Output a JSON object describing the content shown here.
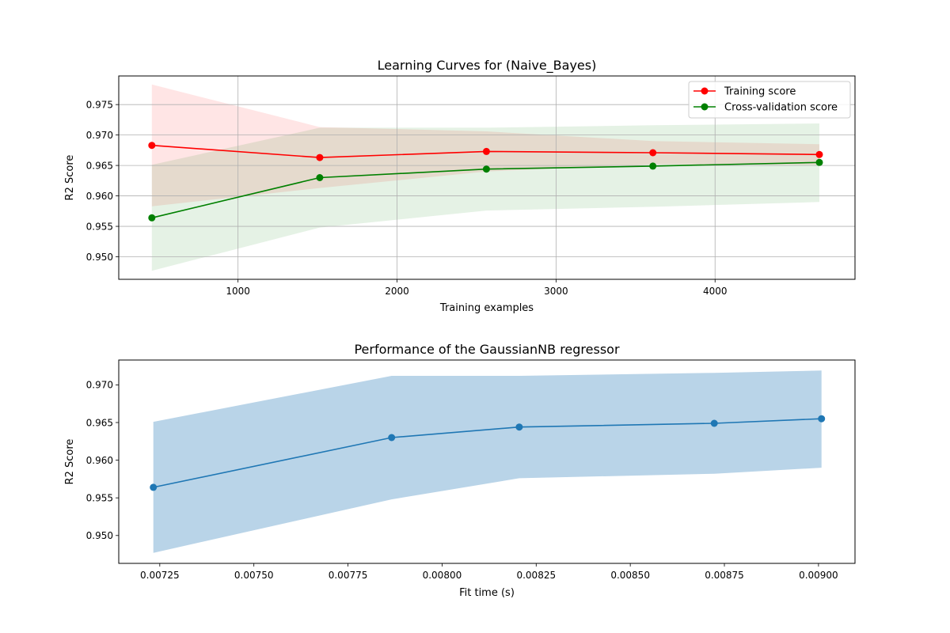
{
  "chart_data": [
    {
      "type": "line",
      "title": "Learning Curves for (Naive_Bayes)",
      "xlabel": "Training examples",
      "ylabel": "R2 Score",
      "xlim": [
        250,
        4880
      ],
      "ylim": [
        0.9463,
        0.9797
      ],
      "xticks": [
        1000,
        2000,
        3000,
        4000
      ],
      "xtick_labels": [
        "1000",
        "2000",
        "3000",
        "4000"
      ],
      "yticks": [
        0.95,
        0.955,
        0.96,
        0.965,
        0.97,
        0.975
      ],
      "ytick_labels": [
        "0.950",
        "0.955",
        "0.960",
        "0.965",
        "0.970",
        "0.975"
      ],
      "grid": true,
      "legend_position": "top-right",
      "x": [
        458,
        1514,
        2562,
        3609,
        4656
      ],
      "series": [
        {
          "name": "Training score",
          "color": "#ff0000",
          "band_color": "#ff0000",
          "values": [
            0.9683,
            0.9663,
            0.9673,
            0.9671,
            0.9668
          ],
          "lower": [
            0.9583,
            0.9613,
            0.964,
            0.9652,
            0.9651
          ],
          "upper": [
            0.9783,
            0.9713,
            0.9706,
            0.969,
            0.9685
          ]
        },
        {
          "name": "Cross-validation score",
          "color": "#008000",
          "band_color": "#008000",
          "values": [
            0.9564,
            0.963,
            0.9644,
            0.9649,
            0.9655
          ],
          "lower": [
            0.9477,
            0.9548,
            0.9576,
            0.9582,
            0.959
          ],
          "upper": [
            0.9651,
            0.9712,
            0.9712,
            0.9716,
            0.9719
          ]
        }
      ]
    },
    {
      "type": "line",
      "title": "Performance of the GaussianNB regressor",
      "xlabel": "Fit time (s)",
      "ylabel": "R2 Score",
      "xlim": [
        0.007141,
        0.009097
      ],
      "ylim": [
        0.9463,
        0.9733
      ],
      "xticks": [
        0.00725,
        0.0075,
        0.00775,
        0.008,
        0.00825,
        0.0085,
        0.00875,
        0.009
      ],
      "xtick_labels": [
        "0.00725",
        "0.00750",
        "0.00775",
        "0.00800",
        "0.00825",
        "0.00850",
        "0.00875",
        "0.00900"
      ],
      "yticks": [
        0.95,
        0.955,
        0.96,
        0.965,
        0.97
      ],
      "ytick_labels": [
        "0.950",
        "0.955",
        "0.960",
        "0.965",
        "0.970"
      ],
      "grid": false,
      "x": [
        0.007233,
        0.007866,
        0.008205,
        0.008723,
        0.009008
      ],
      "series": [
        {
          "color": "#1f77b4",
          "band_color": "#b9d4e8",
          "values": [
            0.9564,
            0.963,
            0.9644,
            0.9649,
            0.9655
          ],
          "lower": [
            0.9477,
            0.9548,
            0.9576,
            0.9582,
            0.959
          ],
          "upper": [
            0.9651,
            0.9712,
            0.9712,
            0.9716,
            0.9719
          ]
        }
      ]
    }
  ]
}
